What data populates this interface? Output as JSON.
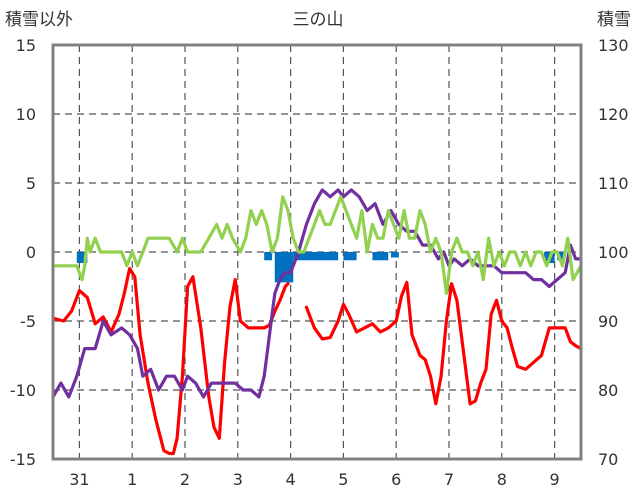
{
  "chart_data": {
    "type": "line",
    "title": "三の山",
    "left_axis_label": "積雪以外",
    "right_axis_label": "積雪",
    "left_ylim": [
      -15,
      15
    ],
    "left_ticks": [
      "15",
      "10",
      "5",
      "0",
      "-5",
      "-10",
      "-15"
    ],
    "right_ylim": [
      70,
      130
    ],
    "right_ticks": [
      "130",
      "120",
      "110",
      "100",
      "90",
      "80",
      "70"
    ],
    "x_range": [
      30.5,
      40.5
    ],
    "x_ticks": [
      "31",
      "1",
      "2",
      "3",
      "4",
      "5",
      "6",
      "7",
      "8",
      "9"
    ],
    "day_boundaries": [
      31,
      32,
      33,
      34,
      35,
      36,
      37,
      38,
      39,
      40
    ],
    "grid": "dashed vertical gridlines",
    "colors": {
      "red_series": "#ff0000",
      "purple_series": "#7030a0",
      "green_series": "#92d050",
      "blue_bars": "#0070c0",
      "frame": "#808080"
    },
    "series": [
      {
        "axis": "left",
        "color": "red_series",
        "x": [
          30.5,
          30.7,
          30.85,
          31.0,
          31.15,
          31.3,
          31.45,
          31.6,
          31.75,
          31.85,
          31.95,
          32.05,
          32.15,
          32.3,
          32.45,
          32.6,
          32.7,
          32.78,
          32.85,
          32.95,
          33.05,
          33.15,
          33.3,
          33.45,
          33.55,
          33.65,
          33.75,
          33.85,
          33.95,
          34.05,
          34.2,
          34.35,
          34.5,
          34.6,
          34.7,
          34.8,
          34.9,
          34.95
        ],
        "y": [
          -4.8,
          -5.0,
          -4.3,
          -2.8,
          -3.3,
          -5.2,
          -4.7,
          -5.8,
          -4.5,
          -3.0,
          -1.2,
          -1.8,
          -6.0,
          -9.5,
          -12.2,
          -14.4,
          -14.6,
          -14.6,
          -13.5,
          -9.0,
          -2.5,
          -1.8,
          -5.5,
          -10.5,
          -12.7,
          -13.5,
          -8.0,
          -4.0,
          -2.0,
          -5.0,
          -5.5,
          -5.5,
          -5.5,
          -5.3,
          -4.3,
          -3.5,
          -2.5,
          -2.3
        ]
      },
      {
        "axis": "left",
        "color": "red_series",
        "x": [
          35.3,
          35.45,
          35.6,
          35.75,
          35.9,
          36.0,
          36.1,
          36.25,
          36.4,
          36.55,
          36.7,
          36.85,
          37.0,
          37.1,
          37.2,
          37.3,
          37.45,
          37.55,
          37.65,
          37.75,
          37.85,
          37.95,
          38.05,
          38.15,
          38.25,
          38.4,
          38.5,
          38.6,
          38.7,
          38.8,
          38.9,
          39.0,
          39.1,
          39.2,
          39.3,
          39.45,
          39.6,
          39.75,
          39.9,
          40.05,
          40.2,
          40.3,
          40.4,
          40.5
        ],
        "y": [
          -4.0,
          -5.5,
          -6.3,
          -6.2,
          -5.0,
          -3.8,
          -4.5,
          -5.8,
          -5.5,
          -5.2,
          -5.8,
          -5.5,
          -5.0,
          -3.2,
          -2.2,
          -6.0,
          -7.5,
          -7.8,
          -9.0,
          -11.0,
          -9.0,
          -5.0,
          -2.3,
          -3.5,
          -6.5,
          -11.0,
          -10.8,
          -9.5,
          -8.5,
          -4.5,
          -3.5,
          -5.0,
          -5.5,
          -7.0,
          -8.3,
          -8.5,
          -8.0,
          -7.5,
          -5.5,
          -5.5,
          -5.5,
          -6.5,
          -6.8,
          -7.0
        ]
      },
      {
        "axis": "right",
        "color": "purple_series",
        "x": [
          30.5,
          30.65,
          30.8,
          30.95,
          31.1,
          31.3,
          31.45,
          31.6,
          31.8,
          31.95,
          32.1,
          32.2,
          32.35,
          32.5,
          32.65,
          32.8,
          32.95,
          33.05,
          33.2,
          33.35,
          33.5,
          33.65,
          33.8,
          33.95,
          34.1,
          34.25,
          34.4,
          34.5,
          34.6,
          34.7,
          34.8,
          34.9,
          35.0,
          35.15,
          35.3,
          35.45,
          35.6,
          35.75,
          35.9,
          36.0,
          36.15,
          36.3,
          36.45,
          36.6,
          36.75,
          36.9,
          37.05,
          37.2,
          37.35,
          37.5,
          37.65,
          37.8,
          37.9,
          38.0,
          38.1,
          38.25,
          38.4,
          38.55,
          38.7,
          38.85,
          39.0,
          39.1,
          39.2,
          39.3,
          39.45,
          39.6,
          39.75,
          39.9,
          40.05,
          40.2,
          40.3,
          40.4,
          40.5
        ],
        "y": [
          79,
          81,
          79,
          82,
          86,
          86,
          90,
          88,
          89,
          88,
          86,
          82,
          83,
          80,
          82,
          82,
          80,
          82,
          81,
          79,
          81,
          81,
          81,
          81,
          80,
          80,
          79,
          82,
          88,
          94,
          96,
          97,
          97,
          100,
          104,
          107,
          109,
          108,
          109,
          108,
          109,
          108,
          106,
          107,
          104,
          106,
          104,
          103,
          103,
          101,
          101,
          99,
          100,
          98,
          99,
          98,
          99,
          98,
          98,
          98,
          97,
          97,
          97,
          97,
          97,
          96,
          96,
          95,
          96,
          97,
          101,
          99,
          99
        ]
      },
      {
        "axis": "left",
        "color": "green_series",
        "x": [
          30.5,
          30.8,
          30.95,
          31.05,
          31.1,
          31.15,
          31.2,
          31.3,
          31.4,
          31.5,
          31.6,
          31.8,
          31.9,
          32.0,
          32.1,
          32.2,
          32.3,
          32.5,
          32.7,
          32.85,
          32.95,
          33.05,
          33.15,
          33.3,
          33.45,
          33.6,
          33.7,
          33.8,
          33.9,
          34.05,
          34.15,
          34.25,
          34.35,
          34.45,
          34.55,
          34.65,
          34.75,
          34.85,
          34.95,
          35.05,
          35.15,
          35.25,
          35.35,
          35.45,
          35.55,
          35.65,
          35.75,
          35.85,
          35.95,
          36.05,
          36.15,
          36.25,
          36.35,
          36.45,
          36.55,
          36.65,
          36.75,
          36.85,
          36.95,
          37.05,
          37.15,
          37.25,
          37.35,
          37.45,
          37.55,
          37.65,
          37.75,
          37.85,
          37.95,
          38.05,
          38.15,
          38.25,
          38.35,
          38.45,
          38.55,
          38.65,
          38.75,
          38.85,
          38.95,
          39.05,
          39.15,
          39.25,
          39.35,
          39.45,
          39.55,
          39.65,
          39.75,
          39.85,
          39.95,
          40.05,
          40.15,
          40.25,
          40.35,
          40.5
        ],
        "y": [
          -1,
          -1,
          -1,
          -2,
          -1,
          1,
          0,
          1,
          0,
          0,
          0,
          0,
          -1,
          0,
          -1,
          0,
          1,
          1,
          1,
          0,
          1,
          0,
          0,
          0,
          1,
          2,
          1,
          2,
          1,
          0,
          1,
          3,
          2,
          3,
          2,
          0,
          1,
          4,
          3,
          1,
          0,
          0,
          1,
          2,
          3,
          2,
          2,
          3,
          4,
          3,
          2,
          1,
          3,
          0,
          2,
          1,
          1,
          3,
          2,
          1,
          3,
          1,
          1,
          3,
          2,
          0,
          1,
          0,
          -3,
          0,
          1,
          0,
          0,
          -1,
          0,
          -2,
          1,
          -1,
          0,
          -1,
          0,
          0,
          -1,
          0,
          -1,
          0,
          0,
          -1,
          0,
          0,
          -1,
          1,
          -2,
          -1
        ]
      }
    ],
    "bars": {
      "axis": "left",
      "color": "blue_bars",
      "segments": [
        {
          "x": [
            30.95,
            31.15
          ],
          "y": -0.8
        },
        {
          "x": [
            34.5,
            34.65
          ],
          "y": -0.6
        },
        {
          "x": [
            34.7,
            35.05
          ],
          "y": -2.2
        },
        {
          "x": [
            35.05,
            35.9
          ],
          "y": -0.6
        },
        {
          "x": [
            36.0,
            36.25
          ],
          "y": -0.6
        },
        {
          "x": [
            36.55,
            36.85
          ],
          "y": -0.6
        },
        {
          "x": [
            36.9,
            37.05
          ],
          "y": -0.4
        },
        {
          "x": [
            39.8,
            40.0
          ],
          "y": -0.8
        },
        {
          "x": [
            40.05,
            40.2
          ],
          "y": -0.6
        }
      ]
    }
  }
}
